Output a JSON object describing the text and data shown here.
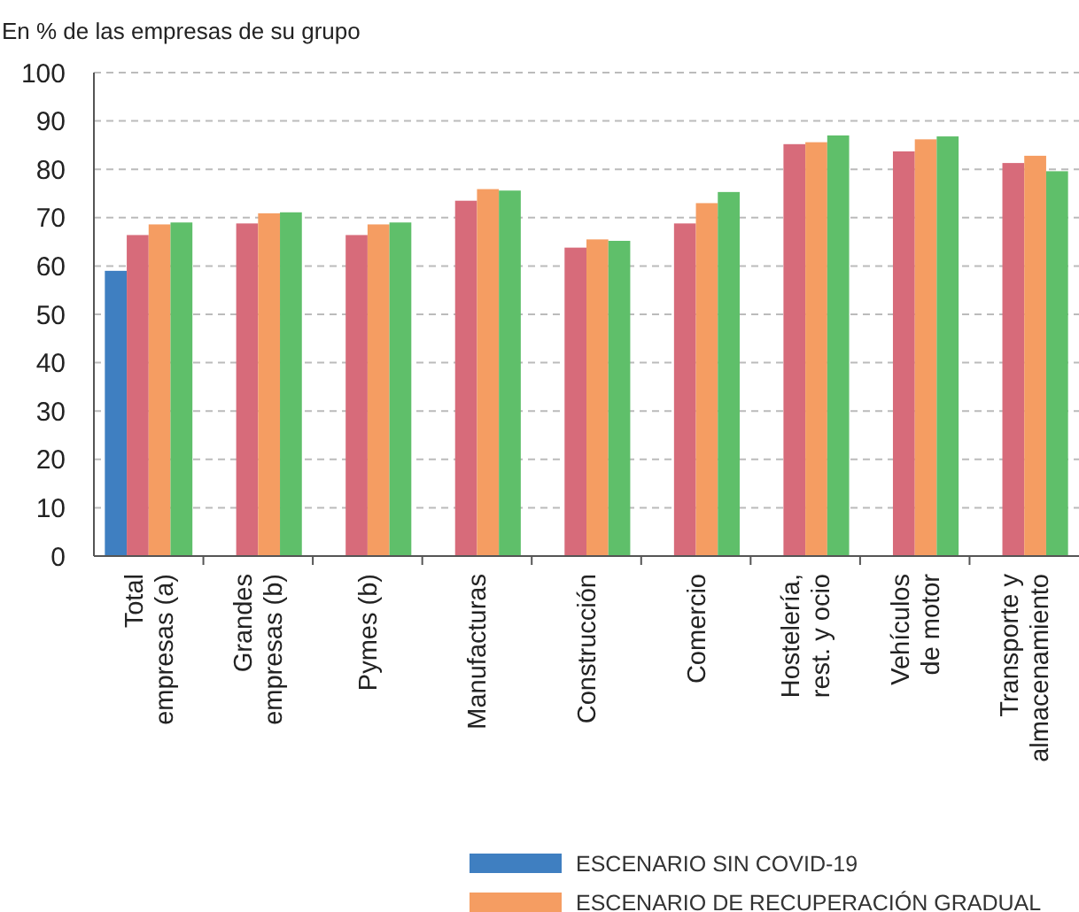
{
  "chart_data": {
    "type": "bar",
    "ylabel": "En % de las empresas de su grupo",
    "categories": [
      "Total\nempresas (a)",
      "Grandes\nempresas (b)",
      "Pymes (b)",
      "Manufacturas",
      "Construcción",
      "Comercio",
      "Hostelería,\nrest. y ocio",
      "Vehículos\nde motor",
      "Transporte y\nalmacenamiento"
    ],
    "series": [
      {
        "name": "ESCENARIO SIN COVID-19",
        "color": "#3f7fc1",
        "values": [
          59.0,
          null,
          null,
          null,
          null,
          null,
          null,
          null,
          null
        ]
      },
      {
        "color": "#d76b7a",
        "values": [
          66.4,
          68.8,
          66.4,
          73.5,
          63.8,
          68.8,
          85.2,
          83.7,
          81.3
        ]
      },
      {
        "name": "ESCENARIO DE RECUPERACIÓN GRADUAL",
        "color": "#f59d62",
        "values": [
          68.6,
          70.9,
          68.6,
          75.9,
          65.5,
          73.0,
          85.6,
          86.2,
          82.8
        ]
      },
      {
        "color": "#5fbf6a",
        "values": [
          69.0,
          71.1,
          69.0,
          75.6,
          65.2,
          75.3,
          87.0,
          86.8,
          79.6
        ]
      }
    ],
    "ylim": [
      0,
      100
    ],
    "yticks": [
      0,
      10,
      20,
      30,
      40,
      50,
      60,
      70,
      80,
      90,
      100
    ],
    "grid": "y",
    "legend": "bottom"
  }
}
